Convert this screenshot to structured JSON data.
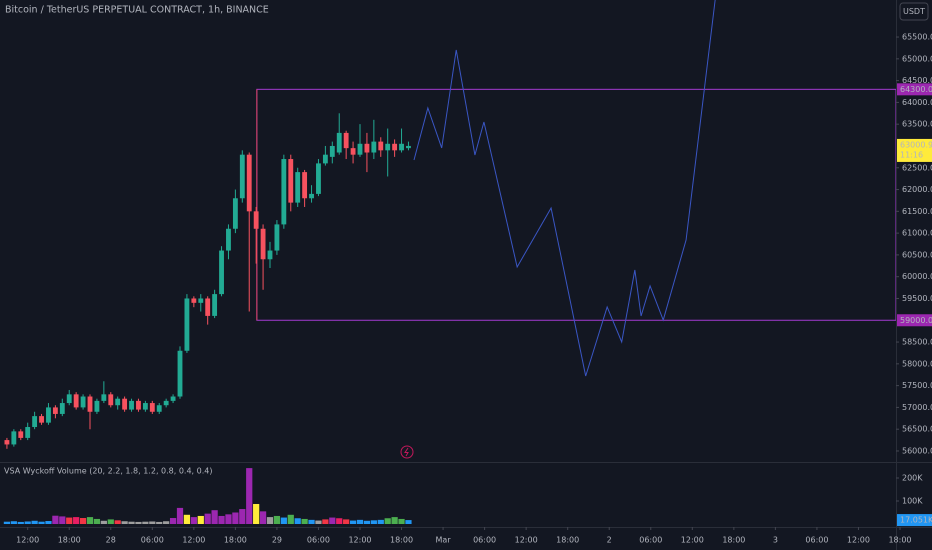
{
  "chart_data": {
    "type": "candlestick",
    "title": "Bitcoin / TetherUS PERPETUAL CONTRACT, 1h, BINANCE",
    "currency_button": "USDT",
    "up_color": "#22ab94",
    "down_color": "#f7525f",
    "x": [
      -3,
      -2,
      -1,
      0,
      1,
      2,
      3,
      4,
      5,
      6,
      7,
      8,
      9,
      10,
      11,
      12,
      13,
      14,
      15,
      16,
      17,
      18,
      19,
      20,
      21,
      22,
      23,
      24,
      25,
      26,
      27,
      28,
      29,
      30,
      31,
      32,
      33,
      34,
      35,
      36,
      37,
      38,
      39,
      40,
      41,
      42,
      43,
      44,
      45,
      46,
      47,
      48,
      49,
      50,
      51,
      52,
      53,
      54,
      55
    ],
    "open": [
      56250,
      56150,
      56450,
      56300,
      56550,
      56800,
      56650,
      57000,
      56850,
      57100,
      57300,
      57000,
      57250,
      56900,
      57150,
      57300,
      57050,
      57200,
      56950,
      57150,
      56950,
      57100,
      56900,
      57050,
      57150,
      57250,
      58300,
      59500,
      59400,
      59500,
      59100,
      59600,
      60600,
      61100,
      61800,
      62800,
      61500,
      61100,
      60400,
      60600,
      61200,
      62700,
      61700,
      62400,
      61800,
      61900,
      62600,
      62750,
      62850,
      63300,
      62950,
      62800,
      63050,
      62850,
      63100,
      62900,
      63050,
      62900,
      62950
    ],
    "high": [
      56300,
      56500,
      56500,
      56650,
      56900,
      56850,
      57100,
      57050,
      57200,
      57400,
      57350,
      57300,
      57300,
      57200,
      57600,
      57350,
      57250,
      57250,
      57200,
      57200,
      57150,
      57150,
      57100,
      57200,
      57300,
      58400,
      59600,
      59550,
      59600,
      59550,
      59700,
      60700,
      61200,
      62000,
      62900,
      62850,
      61600,
      61200,
      60800,
      61300,
      62800,
      62800,
      62500,
      62450,
      62100,
      62700,
      63000,
      63100,
      63750,
      63350,
      63100,
      63500,
      63300,
      63600,
      63200,
      63400,
      63150,
      63400,
      63100
    ],
    "low": [
      56050,
      56100,
      56250,
      56250,
      56500,
      56600,
      56600,
      56750,
      56800,
      57050,
      56950,
      56950,
      56500,
      56850,
      57100,
      57000,
      56950,
      56900,
      56900,
      56900,
      56900,
      56850,
      56850,
      57000,
      57100,
      57200,
      58250,
      59300,
      59200,
      58900,
      59050,
      59550,
      60400,
      61000,
      61700,
      59200,
      60300,
      59700,
      60200,
      60500,
      61100,
      61500,
      61600,
      61600,
      61700,
      61850,
      62550,
      62600,
      62800,
      62700,
      62600,
      62750,
      62400,
      62700,
      62750,
      62300,
      62750,
      62850,
      62900
    ],
    "close": [
      56150,
      56450,
      56300,
      56550,
      56800,
      56650,
      57000,
      56850,
      57100,
      57300,
      57000,
      57250,
      56900,
      57150,
      57300,
      57050,
      57200,
      56950,
      57150,
      56950,
      57100,
      56900,
      57050,
      57150,
      57250,
      58300,
      59500,
      59400,
      59500,
      59100,
      59600,
      60600,
      61100,
      61800,
      62800,
      61500,
      61100,
      60400,
      60600,
      61200,
      62700,
      61700,
      62400,
      61800,
      61900,
      62600,
      62800,
      63000,
      63300,
      62950,
      62800,
      63050,
      62850,
      63100,
      62900,
      63050,
      62900,
      63050,
      63000.9
    ],
    "xlim": [
      -4,
      126
    ],
    "xticks": [
      {
        "value": 0,
        "label": "12:00"
      },
      {
        "value": 6,
        "label": "18:00"
      },
      {
        "value": 12,
        "label": "28"
      },
      {
        "value": 18,
        "label": "06:00"
      },
      {
        "value": 24,
        "label": "12:00"
      },
      {
        "value": 30,
        "label": "18:00"
      },
      {
        "value": 36,
        "label": "29"
      },
      {
        "value": 42,
        "label": "06:00"
      },
      {
        "value": 48,
        "label": "12:00"
      },
      {
        "value": 54,
        "label": "18:00"
      },
      {
        "value": 60,
        "label": "Mar"
      },
      {
        "value": 66,
        "label": "06:00"
      },
      {
        "value": 72,
        "label": "12:00"
      },
      {
        "value": 78,
        "label": "18:00"
      },
      {
        "value": 84,
        "label": "2"
      },
      {
        "value": 90,
        "label": "06:00"
      },
      {
        "value": 96,
        "label": "12:00"
      },
      {
        "value": 102,
        "label": "18:00"
      },
      {
        "value": 108,
        "label": "3"
      },
      {
        "value": 114,
        "label": "06:00"
      },
      {
        "value": 120,
        "label": "12:00"
      },
      {
        "value": 126,
        "label": "18:00"
      }
    ],
    "ylim": [
      55793,
      66350
    ],
    "yticks": [
      {
        "value": 56000,
        "label": "56000.0"
      },
      {
        "value": 56500,
        "label": "56500.0"
      },
      {
        "value": 57000,
        "label": "57000.0"
      },
      {
        "value": 57500,
        "label": "57500.0"
      },
      {
        "value": 58000,
        "label": "58000.0"
      },
      {
        "value": 58500,
        "label": "58500.0"
      },
      {
        "value": 59500,
        "label": "59500.0"
      },
      {
        "value": 60000,
        "label": "60000.0"
      },
      {
        "value": 60500,
        "label": "60500.0"
      },
      {
        "value": 61000,
        "label": "61000.0"
      },
      {
        "value": 61500,
        "label": "61500.0"
      },
      {
        "value": 62000,
        "label": "62000.0"
      },
      {
        "value": 62500,
        "label": "62500.0"
      },
      {
        "value": 63500,
        "label": "63500.0"
      },
      {
        "value": 64000,
        "label": "64000.0"
      },
      {
        "value": 64500,
        "label": "64500.0"
      },
      {
        "value": 65000,
        "label": "65000.0"
      },
      {
        "value": 65500,
        "label": "65500.0"
      }
    ],
    "price_labels": [
      {
        "value": 64300,
        "label": "64300.0"
      },
      {
        "value": 59000,
        "label": "59000.0"
      }
    ],
    "price_label_color": "#9c27b0",
    "last_price": {
      "value": 63000.9,
      "label": "63000.9",
      "countdown": "11:16",
      "color": "#ffeb3b"
    },
    "box": {
      "top": 64300,
      "bottom": 59000,
      "x_start": 33.1,
      "color": "#a33ad1",
      "left_color": "#d8435f"
    },
    "projection": {
      "color": "#3a56c4",
      "x": [
        55.8,
        57.8,
        59.8,
        61.9,
        64.6,
        65.9,
        70.7,
        75.6,
        80.6,
        83.7,
        85.8,
        87.7,
        88.6,
        89.9,
        91.8,
        95.1,
        99.3
      ],
      "values": [
        62678,
        63872,
        62954,
        65203,
        62793,
        63551,
        60223,
        61577,
        57721,
        59305,
        58502,
        60154,
        59098,
        59787,
        59006,
        60842,
        66350
      ]
    },
    "volume": {
      "title": "VSA Wyckoff Volume (20, 2.2, 1.8, 1.2, 0.8, 0.4, 0.4)",
      "values": [
        10000,
        12000,
        9000,
        11000,
        14000,
        10000,
        13000,
        36000,
        33000,
        28000,
        30000,
        26000,
        30000,
        22000,
        14000,
        20000,
        16000,
        12000,
        10000,
        9000,
        10000,
        11000,
        9000,
        12000,
        26000,
        70000,
        40000,
        30000,
        35000,
        45000,
        60000,
        35000,
        42000,
        50000,
        65000,
        243000,
        87000,
        55000,
        30000,
        35000,
        28000,
        40000,
        25000,
        22000,
        18000,
        15000,
        20000,
        28000,
        25000,
        20000,
        15000,
        18000,
        14000,
        16000,
        18000,
        25000,
        30000,
        22000,
        17051
      ],
      "colors": [
        "#2196f3",
        "#2196f3",
        "#2196f3",
        "#2196f3",
        "#2196f3",
        "#2196f3",
        "#2196f3",
        "#9c27b0",
        "#9c27b0",
        "#f23645",
        "#e91e63",
        "#f23645",
        "#4caf50",
        "#4caf50",
        "#9e9e9e",
        "#4caf50",
        "#f23645",
        "#9e9e9e",
        "#9e9e9e",
        "#9e9e9e",
        "#9e9e9e",
        "#9e9e9e",
        "#9e9e9e",
        "#9e9e9e",
        "#9c27b0",
        "#9c27b0",
        "#ffeb3b",
        "#9c27b0",
        "#ffeb3b",
        "#9c27b0",
        "#9c27b0",
        "#9c27b0",
        "#9c27b0",
        "#9c27b0",
        "#9c27b0",
        "#9c27b0",
        "#ffeb3b",
        "#9c27b0",
        "#9e9e9e",
        "#4caf50",
        "#2196f3",
        "#4caf50",
        "#2196f3",
        "#4caf50",
        "#2196f3",
        "#9e9e9e",
        "#f23645",
        "#9c27b0",
        "#e91e63",
        "#f23645",
        "#2196f3",
        "#2196f3",
        "#2196f3",
        "#2196f3",
        "#2196f3",
        "#4caf50",
        "#4caf50",
        "#4caf50",
        "#2196f3"
      ],
      "ylim": [
        0,
        256500
      ],
      "yticks": [
        {
          "value": 100000,
          "label": "100K"
        },
        {
          "value": 200000,
          "label": "200K"
        }
      ],
      "last": {
        "value": 17051,
        "label": "17.051K",
        "color": "#2196f3"
      }
    }
  }
}
